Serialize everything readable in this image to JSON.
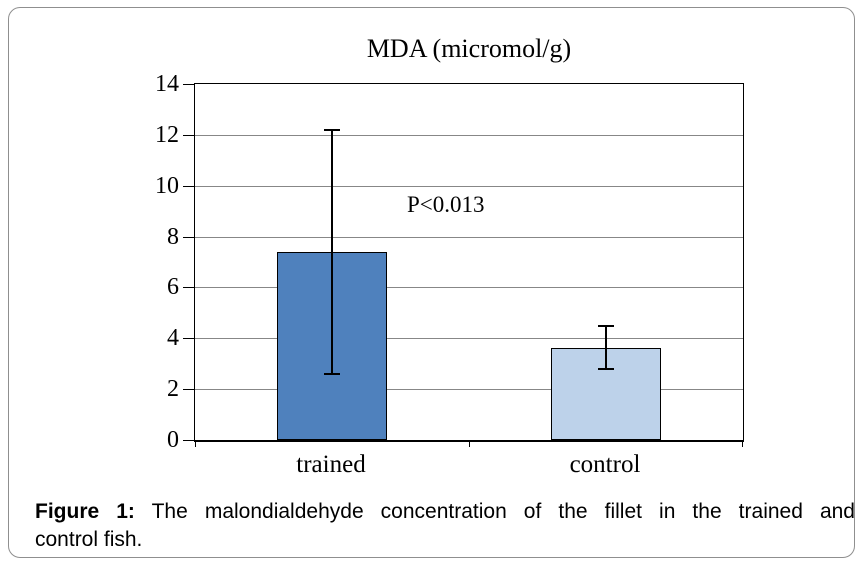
{
  "chart_data": {
    "type": "bar",
    "title": "MDA (micromol/g)",
    "categories": [
      "trained",
      "control"
    ],
    "values": [
      7.4,
      3.6
    ],
    "error_bars": {
      "upper": [
        12.2,
        4.5
      ],
      "lower": [
        2.6,
        2.8
      ]
    },
    "annotation": "P<0.013",
    "xlabel": "",
    "ylabel": "",
    "ylim": [
      0,
      14
    ],
    "yticks": [
      0,
      2,
      4,
      6,
      8,
      10,
      12,
      14
    ],
    "grid": "horizontal",
    "legend": "none",
    "bar_colors": [
      "#4f81bd",
      "#bdd2ea"
    ],
    "bar_border_color": "#000000",
    "gridline_color": "#878787"
  },
  "caption": {
    "label": "Figure 1:",
    "line1_rest": "The malondialdehyde concentration of the fillet in the trained and",
    "line2": "control fish."
  }
}
